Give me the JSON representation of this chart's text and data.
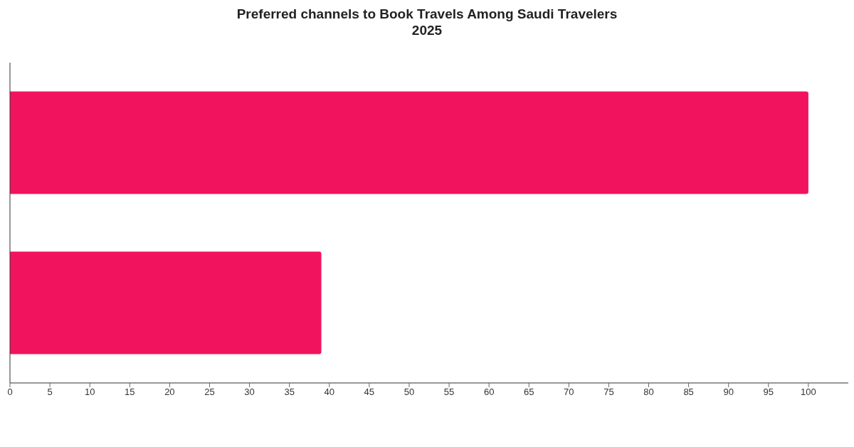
{
  "chart_data": {
    "type": "bar",
    "orientation": "horizontal",
    "title": "Preferred channels to Book Travels Among Saudi Travelers\n2025",
    "categories": [
      null,
      null
    ],
    "values": [
      100,
      39
    ],
    "color": "#f2135f",
    "xlim": [
      0,
      105
    ],
    "xticks": [
      0,
      5,
      10,
      15,
      20,
      25,
      30,
      35,
      40,
      45,
      50,
      55,
      60,
      65,
      70,
      75,
      80,
      85,
      90,
      95,
      100
    ],
    "grid": false,
    "legend": false
  }
}
